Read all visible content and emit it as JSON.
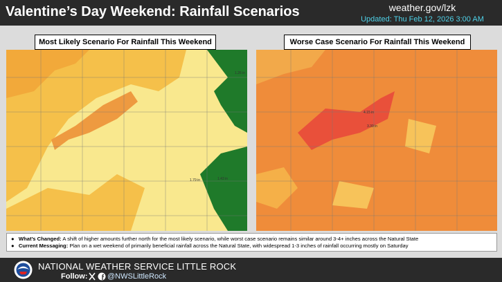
{
  "header": {
    "title": "Valentine’s Day Weekend: Rainfall Scenarios",
    "website": "weather.gov/lzk",
    "updated": "Updated: Thu Feb 12, 2026 3:00 AM"
  },
  "panels": [
    {
      "caption": "Most Likely Scenario For Rainfall This Weekend",
      "labels": [
        "1.26 in",
        "1.79 in",
        "1.43 in"
      ]
    },
    {
      "caption": "Worse Case Scenario For Rainfall This Weekend",
      "labels": [
        "4.15 in",
        "3.39 in"
      ]
    }
  ],
  "notes": [
    {
      "label": "What’s Changed:",
      "text": "A shift of higher amounts further north for the most likely scenario, while worst case scenario remains similar around 3-4+ inches across the Natural State"
    },
    {
      "label": "Current Messaging:",
      "text": "Plan on a wet weekend of primarily beneficial rainfall across the Natural State, with widespread 1-3 inches of rainfall occurring mostly on Saturday"
    }
  ],
  "footer": {
    "office": "NATIONAL WEATHER SERVICE LITTLE ROCK",
    "follow": "Follow:",
    "handle": "@NWSLittleRock"
  }
}
